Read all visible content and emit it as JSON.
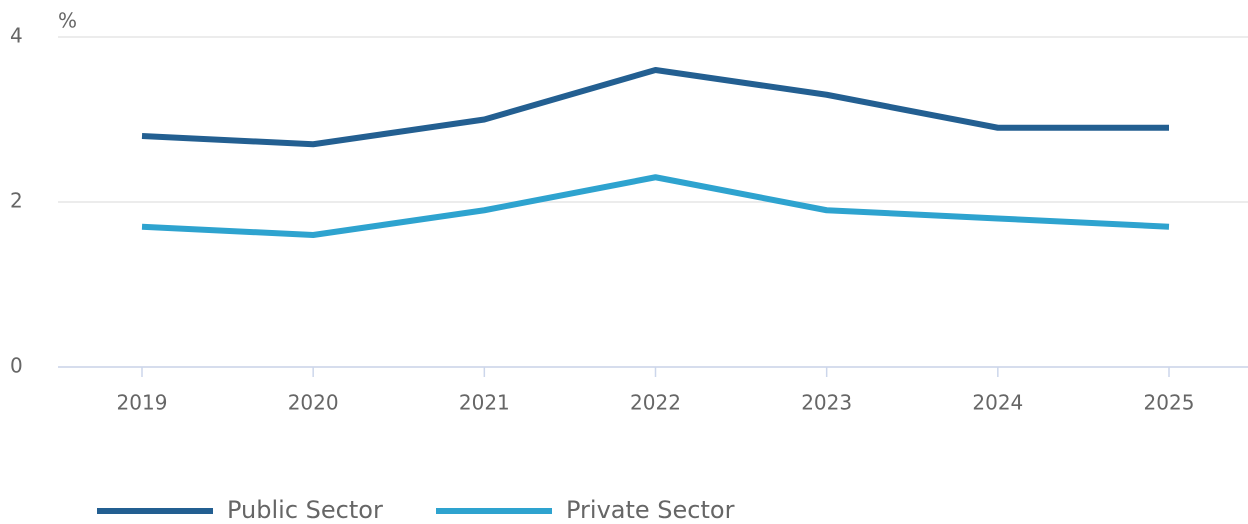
{
  "chart_data": {
    "type": "line",
    "y_label": "%",
    "categories": [
      "2019",
      "2020",
      "2021",
      "2022",
      "2023",
      "2024",
      "2025"
    ],
    "series": [
      {
        "name": "Public Sector",
        "color": "#235f91",
        "values": [
          2.8,
          2.7,
          3.0,
          3.6,
          3.3,
          2.9,
          2.9
        ]
      },
      {
        "name": "Private Sector",
        "color": "#2ea3cf",
        "values": [
          1.7,
          1.6,
          1.9,
          2.3,
          1.9,
          1.8,
          1.7
        ]
      }
    ],
    "ylim": [
      0,
      4
    ],
    "yticks": [
      0,
      2,
      4
    ],
    "grid": true
  }
}
